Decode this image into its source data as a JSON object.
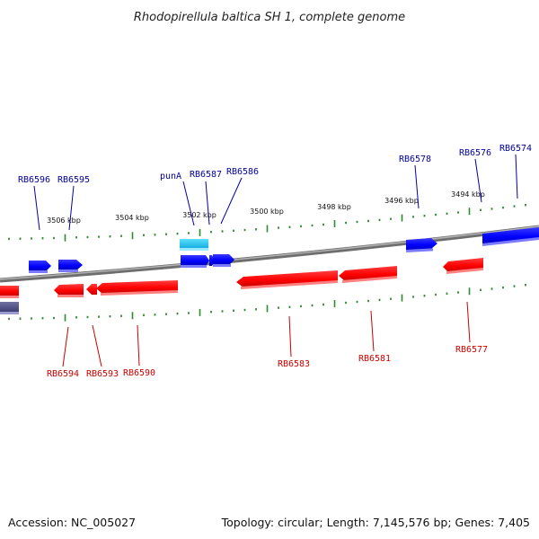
{
  "title": "Rhodopirellula baltica SH 1, complete genome",
  "accession": "Accession: NC_005027",
  "topology": "Topology: circular; Length: 7,145,576 bp; Genes: 7,405",
  "colors": {
    "forward": "#0000ff",
    "reverse": "#ff0000",
    "rna": "#22ccff",
    "other": "#555588",
    "forward_label": "#000099",
    "reverse_label": "#cc0000",
    "backbone": "#8a8a8a",
    "ticks": "#2e8b2e"
  },
  "kbp_ticks": [
    "3506 kbp",
    "3504 kbp",
    "3502 kbp",
    "3500 kbp",
    "3498 kbp",
    "3496 kbp",
    "3494 kbp"
  ],
  "forward_genes": [
    "RB6596",
    "RB6595",
    "punA",
    "RB6587",
    "RB6586",
    "RB6578",
    "RB6576",
    "RB6574"
  ],
  "reverse_genes": [
    "RB6594",
    "RB6593",
    "RB6590",
    "RB6583",
    "RB6581",
    "RB6577"
  ]
}
